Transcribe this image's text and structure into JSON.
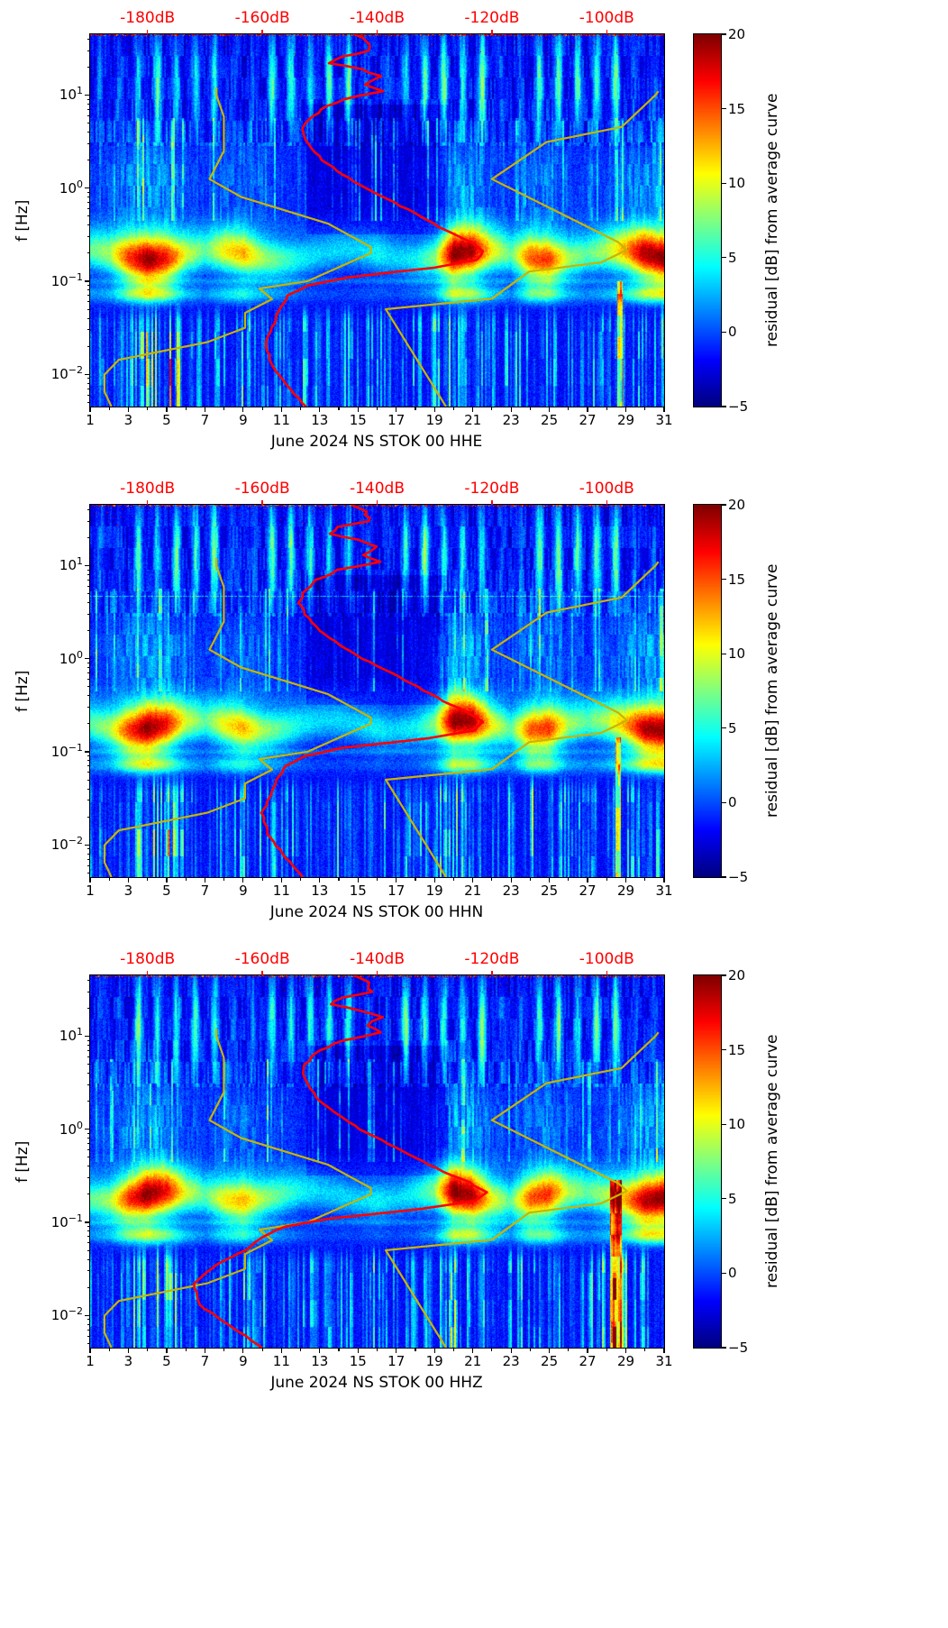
{
  "chart_data": {
    "type": "heatmap",
    "subtype": "seismic-noise-residual-spectrogram",
    "colormap": "jet",
    "f_axis": {
      "label": "f [Hz]",
      "top_hz": 45,
      "bottom_hz": 0.0045,
      "tick_values": [
        10,
        1,
        0.1,
        0.01
      ],
      "tick_exponents": [
        "1",
        "0",
        "−1",
        "−2"
      ]
    },
    "day_axis": {
      "min": 1,
      "max": 31,
      "ticks": [
        1,
        3,
        5,
        7,
        9,
        11,
        13,
        15,
        17,
        19,
        21,
        23,
        25,
        27,
        29,
        31
      ]
    },
    "db_axis": {
      "min": -190,
      "max": -90,
      "values": [
        -180,
        -160,
        -140,
        -120,
        -100
      ],
      "labels": [
        "-180dB",
        "-160dB",
        "-140dB",
        "-120dB",
        "-100dB"
      ],
      "color": "#ff0000"
    },
    "colorbar": {
      "label": "residual [dB] from average curve",
      "range": [
        -5,
        20
      ],
      "tick_values": [
        20,
        15,
        10,
        5,
        0,
        -5
      ],
      "tick_labels": [
        "20",
        "15",
        "10",
        "5",
        "0",
        "−5"
      ]
    },
    "model_curves": {
      "color": "#c8b400",
      "nlnm": [
        [
          12,
          -168
        ],
        [
          10,
          -168
        ],
        [
          5.88,
          -166.7
        ],
        [
          2.5,
          -166.7
        ],
        [
          1.25,
          -169.2
        ],
        [
          0.806,
          -163.7
        ],
        [
          0.417,
          -148.6
        ],
        [
          0.233,
          -141.1
        ],
        [
          0.2,
          -141.1
        ],
        [
          0.167,
          -144
        ],
        [
          0.1,
          -152.1
        ],
        [
          0.0833,
          -160.5
        ],
        [
          0.0641,
          -158.3
        ],
        [
          0.0457,
          -163
        ],
        [
          0.0316,
          -163
        ],
        [
          0.0222,
          -169.5
        ],
        [
          0.0143,
          -185
        ],
        [
          0.0099,
          -187.5
        ],
        [
          0.0065,
          -187.5
        ],
        [
          0.0045,
          -186.3
        ]
      ],
      "nhnm": [
        [
          11,
          -91
        ],
        [
          10,
          -91.5
        ],
        [
          4.55,
          -97.4
        ],
        [
          3.125,
          -110.5
        ],
        [
          1.25,
          -120
        ],
        [
          0.263,
          -98
        ],
        [
          0.217,
          -96.5
        ],
        [
          0.159,
          -101
        ],
        [
          0.127,
          -113.5
        ],
        [
          0.0649,
          -120
        ],
        [
          0.05,
          -138.5
        ],
        [
          0.0045,
          -128
        ]
      ]
    },
    "panels": [
      {
        "channel": "HHE",
        "xlabel": "June 2024 NS STOK 00 HHE",
        "avg_curve_color": "#ff0000",
        "avg_curve": [
          [
            45,
            -144
          ],
          [
            38,
            -141.5
          ],
          [
            30,
            -141
          ],
          [
            26,
            -146
          ],
          [
            22,
            -148
          ],
          [
            19,
            -143
          ],
          [
            16,
            -139.5
          ],
          [
            13,
            -142
          ],
          [
            11,
            -139
          ],
          [
            9,
            -146
          ],
          [
            7,
            -150
          ],
          [
            5,
            -152.5
          ],
          [
            4,
            -153
          ],
          [
            3,
            -152
          ],
          [
            2,
            -149.5
          ],
          [
            1.4,
            -146
          ],
          [
            1,
            -142
          ],
          [
            0.7,
            -137
          ],
          [
            0.5,
            -132.5
          ],
          [
            0.35,
            -128
          ],
          [
            0.27,
            -124
          ],
          [
            0.21,
            -121.5
          ],
          [
            0.17,
            -122.5
          ],
          [
            0.14,
            -130
          ],
          [
            0.11,
            -145
          ],
          [
            0.09,
            -152
          ],
          [
            0.07,
            -155.5
          ],
          [
            0.05,
            -157
          ],
          [
            0.035,
            -158
          ],
          [
            0.022,
            -159.5
          ],
          [
            0.013,
            -158.5
          ],
          [
            0.008,
            -156
          ],
          [
            0.0045,
            -152.5
          ]
        ],
        "storm_day_amplitude": [
          6,
          8,
          15,
          19,
          16,
          9,
          6,
          10,
          12,
          8,
          6,
          4,
          3,
          3,
          3,
          4,
          3,
          4,
          7,
          19,
          18,
          10,
          6,
          14,
          15,
          8,
          6,
          8,
          12,
          18,
          19
        ],
        "lowfreq_day_amplitude": [
          5,
          3,
          7,
          12,
          13,
          6,
          4,
          5,
          7,
          6,
          5,
          7,
          4,
          6,
          5,
          7,
          4,
          5,
          6,
          9,
          7,
          5,
          6,
          8,
          7,
          5,
          4,
          7,
          6,
          5,
          7
        ],
        "special_columns": [
          {
            "day": 28.7,
            "width": 0.28,
            "max_logf": -1.0,
            "amp": 13
          }
        ],
        "faint_line_hz": null
      },
      {
        "channel": "HHN",
        "xlabel": "June 2024 NS STOK 00 HHN",
        "avg_curve_color": "#ff0000",
        "avg_curve": [
          [
            45,
            -144.5
          ],
          [
            38,
            -142
          ],
          [
            30,
            -141.5
          ],
          [
            26,
            -146.5
          ],
          [
            22,
            -148.5
          ],
          [
            19,
            -143.5
          ],
          [
            16,
            -140
          ],
          [
            13,
            -142.5
          ],
          [
            11,
            -139.5
          ],
          [
            9,
            -146.5
          ],
          [
            7,
            -150.5
          ],
          [
            5,
            -153
          ],
          [
            4,
            -153.5
          ],
          [
            3,
            -152.5
          ],
          [
            2,
            -150
          ],
          [
            1.4,
            -146.5
          ],
          [
            1,
            -142.5
          ],
          [
            0.7,
            -137.5
          ],
          [
            0.5,
            -133
          ],
          [
            0.35,
            -128.5
          ],
          [
            0.27,
            -124.5
          ],
          [
            0.21,
            -121.5
          ],
          [
            0.17,
            -123
          ],
          [
            0.14,
            -131
          ],
          [
            0.11,
            -146
          ],
          [
            0.09,
            -152.5
          ],
          [
            0.07,
            -156
          ],
          [
            0.05,
            -157.5
          ],
          [
            0.035,
            -158.5
          ],
          [
            0.022,
            -160
          ],
          [
            0.013,
            -159
          ],
          [
            0.008,
            -156.5
          ],
          [
            0.0045,
            -153
          ]
        ],
        "storm_day_amplitude": [
          6,
          8,
          15,
          19,
          16,
          9,
          6,
          10,
          12,
          8,
          6,
          4,
          3,
          3,
          3,
          4,
          3,
          4,
          7,
          19,
          18,
          10,
          6,
          14,
          15,
          8,
          6,
          8,
          12,
          18,
          19
        ],
        "lowfreq_day_amplitude": [
          5,
          3,
          7,
          12,
          13,
          6,
          4,
          5,
          7,
          6,
          5,
          7,
          4,
          6,
          5,
          7,
          4,
          5,
          6,
          9,
          7,
          5,
          6,
          8,
          7,
          5,
          4,
          7,
          6,
          5,
          7
        ],
        "special_columns": [
          {
            "day": 28.6,
            "width": 0.28,
            "max_logf": -0.85,
            "amp": 13
          }
        ],
        "faint_line_hz": 4.7
      },
      {
        "channel": "HHZ",
        "xlabel": "June 2024 NS STOK 00 HHZ",
        "avg_curve_color": "#ff0000",
        "avg_curve": [
          [
            45,
            -144
          ],
          [
            38,
            -141.5
          ],
          [
            30,
            -141
          ],
          [
            26,
            -146
          ],
          [
            22,
            -148
          ],
          [
            19,
            -143
          ],
          [
            16,
            -139.5
          ],
          [
            13,
            -142
          ],
          [
            11,
            -139
          ],
          [
            9,
            -146
          ],
          [
            7,
            -150
          ],
          [
            5,
            -152.5
          ],
          [
            4,
            -153
          ],
          [
            3,
            -152
          ],
          [
            2,
            -150
          ],
          [
            1.4,
            -146.5
          ],
          [
            1,
            -143
          ],
          [
            0.7,
            -138
          ],
          [
            0.5,
            -133.5
          ],
          [
            0.35,
            -128.5
          ],
          [
            0.27,
            -124
          ],
          [
            0.21,
            -121
          ],
          [
            0.17,
            -123
          ],
          [
            0.14,
            -132
          ],
          [
            0.11,
            -148
          ],
          [
            0.09,
            -156
          ],
          [
            0.07,
            -160
          ],
          [
            0.05,
            -163
          ],
          [
            0.035,
            -168
          ],
          [
            0.022,
            -172
          ],
          [
            0.013,
            -171
          ],
          [
            0.008,
            -166
          ],
          [
            0.0045,
            -160
          ]
        ],
        "storm_day_amplitude": [
          6,
          8,
          15,
          19,
          16,
          9,
          6,
          10,
          12,
          8,
          6,
          4,
          3,
          3,
          3,
          4,
          3,
          4,
          7,
          19,
          18,
          10,
          6,
          14,
          15,
          8,
          6,
          8,
          12,
          18,
          19
        ],
        "lowfreq_day_amplitude": [
          5,
          3,
          7,
          12,
          13,
          6,
          4,
          5,
          7,
          6,
          5,
          7,
          4,
          6,
          5,
          7,
          4,
          5,
          6,
          9,
          7,
          5,
          6,
          8,
          7,
          5,
          4,
          14,
          10,
          5,
          7
        ],
        "special_columns": [
          {
            "day": 28.5,
            "width": 0.6,
            "max_logf": -0.55,
            "amp": 15
          }
        ],
        "faint_line_hz": null
      }
    ]
  }
}
